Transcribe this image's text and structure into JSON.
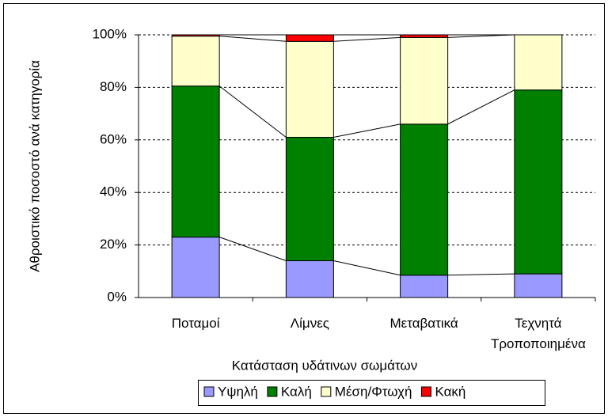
{
  "chart_data": {
    "type": "stacked_bar_percent",
    "y_axis_label": "Αθροιστικό ποσοστό ανά κατηγορία",
    "x_axis_label": "Κατάσταση υδάτινων σωμάτων",
    "categories": [
      "Ποταμοί",
      "Λίμνες",
      "Μεταβατικά",
      "Τεχνητά\nΤροποποιημένα"
    ],
    "series": [
      {
        "name": "Υψηλή",
        "color": "#9999ff",
        "values": [
          23,
          14,
          8.5,
          9
        ]
      },
      {
        "name": "Καλή",
        "color": "#008000",
        "values": [
          57.5,
          47,
          57.5,
          70
        ]
      },
      {
        "name": "Μέση/Φτωχή",
        "color": "#ffffcc",
        "values": [
          19,
          36.5,
          33,
          21
        ]
      },
      {
        "name": "Κακή",
        "color": "#ff0000",
        "values": [
          0.5,
          2.5,
          1,
          0
        ]
      }
    ],
    "ylim": [
      0,
      100
    ],
    "yticks": [
      {
        "value": 0,
        "label": "0%"
      },
      {
        "value": 20,
        "label": "20%"
      },
      {
        "value": 40,
        "label": "40%"
      },
      {
        "value": 60,
        "label": "60%"
      },
      {
        "value": 80,
        "label": "80%"
      },
      {
        "value": 100,
        "label": "100%"
      }
    ],
    "grid": true,
    "series_lines": true,
    "legend": "bottom"
  }
}
